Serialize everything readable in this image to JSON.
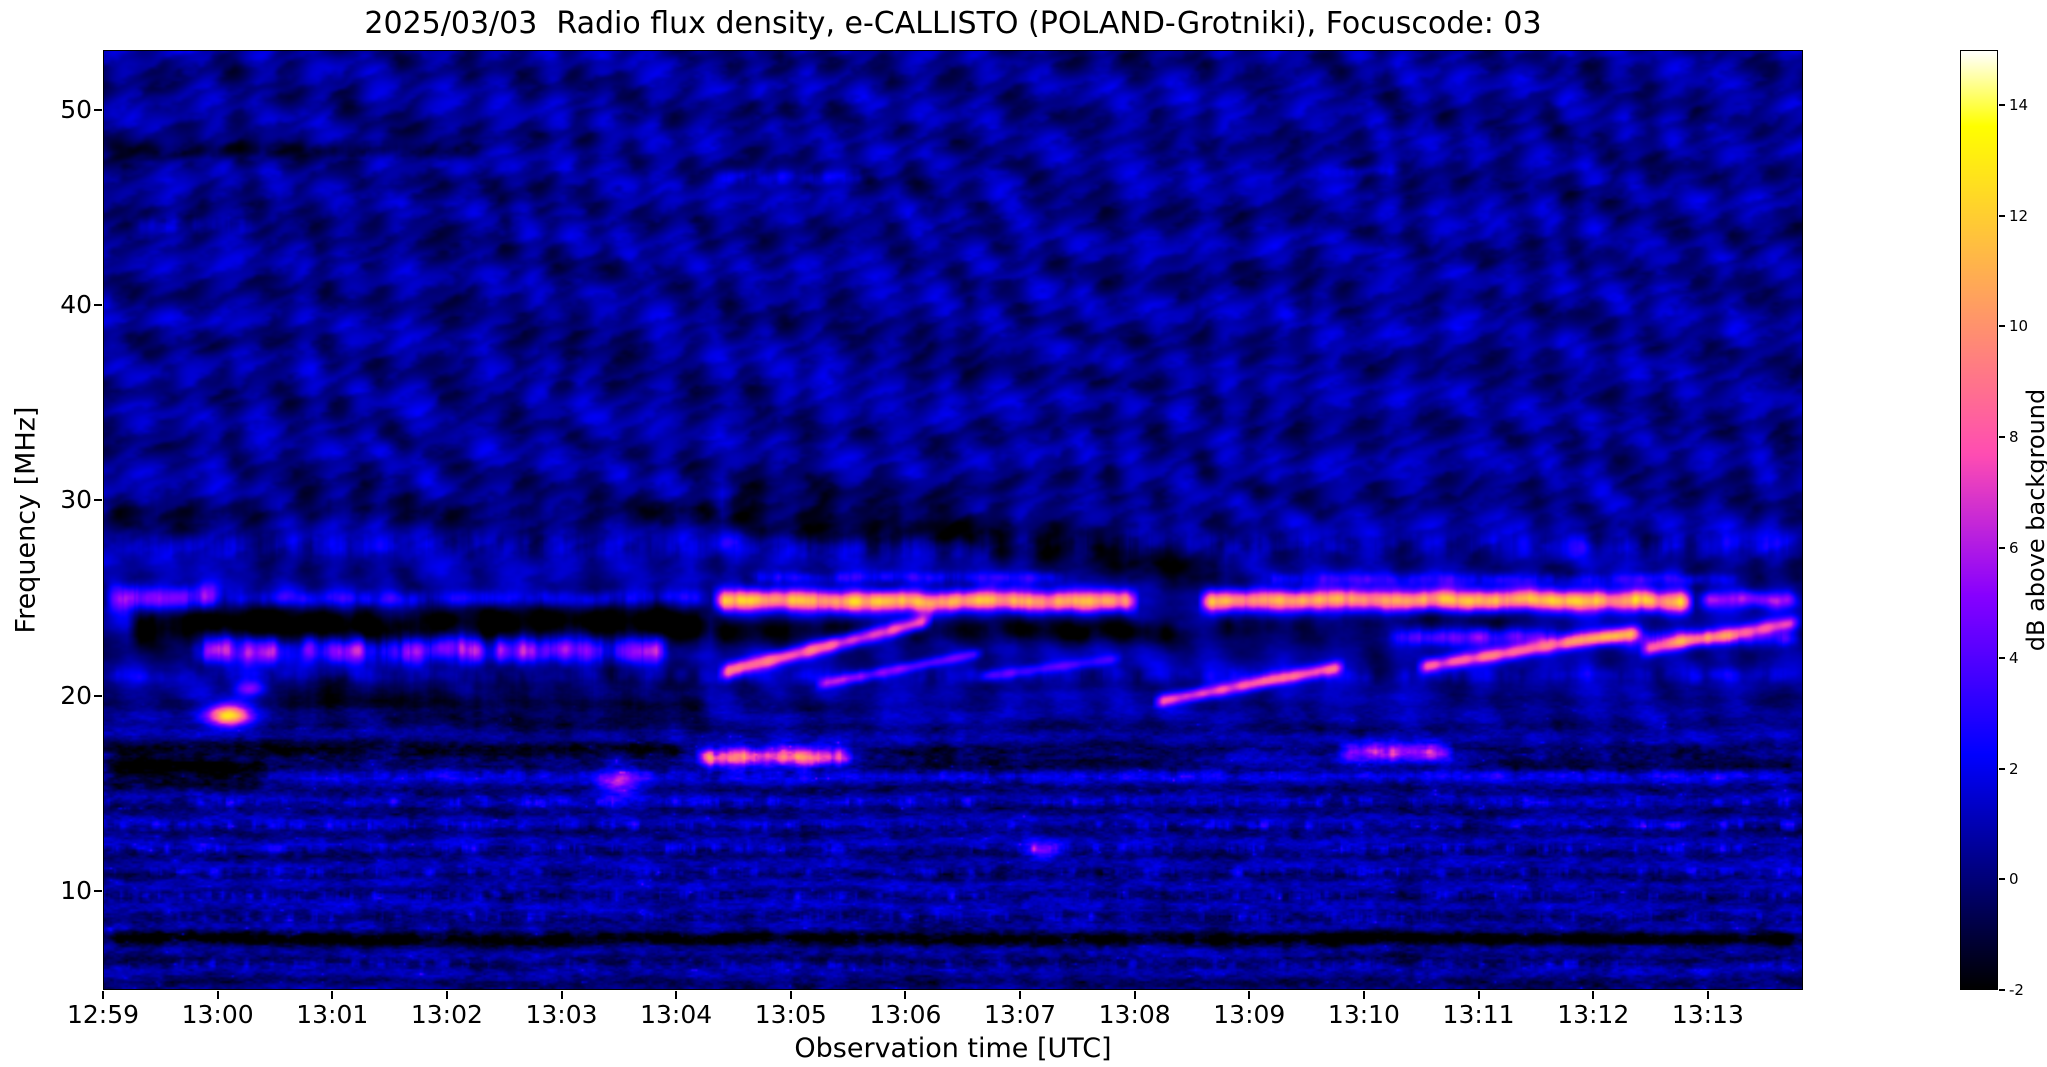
{
  "chart_data": {
    "type": "heatmap",
    "title": "2025/03/03  Radio flux density, e-CALLISTO (POLAND-Grotniki), Focuscode: 03",
    "xlabel": "Observation time [UTC]",
    "ylabel": "Frequency [MHz]",
    "x_ticks": [
      "12:59",
      "13:00",
      "13:01",
      "13:02",
      "13:03",
      "13:04",
      "13:05",
      "13:06",
      "13:07",
      "13:08",
      "13:09",
      "13:10",
      "13:11",
      "13:12",
      "13:13"
    ],
    "x_tick_minutes": [
      0,
      1,
      2,
      3,
      4,
      5,
      6,
      7,
      8,
      9,
      10,
      11,
      12,
      13,
      14
    ],
    "xlim": [
      0,
      14.83
    ],
    "y_ticks": [
      10,
      20,
      30,
      40,
      50
    ],
    "ylim": [
      4.9,
      53.1
    ],
    "grid": false,
    "colorbar": {
      "label": "dB above background",
      "ticks": [
        -2,
        0,
        2,
        4,
        6,
        8,
        10,
        12,
        14
      ],
      "vmin": -2,
      "vmax": 15,
      "colormap": "gnuplot2"
    },
    "features": [
      {
        "type": "band",
        "t0": 0.0,
        "t1": 1.05,
        "f": 25.0,
        "fw": 0.45,
        "amp": 7.5,
        "flicker": 0.45
      },
      {
        "type": "band",
        "t0": 1.05,
        "t1": 5.3,
        "f": 24.95,
        "fw": 0.3,
        "amp": 3.2,
        "flicker": 0.6
      },
      {
        "type": "band",
        "t0": 5.3,
        "t1": 9.05,
        "f": 24.85,
        "fw": 0.38,
        "amp": 12.5,
        "flicker": 0.3
      },
      {
        "type": "band",
        "t0": 9.55,
        "t1": 13.9,
        "f": 24.85,
        "fw": 0.38,
        "amp": 12.8,
        "flicker": 0.3
      },
      {
        "type": "band",
        "t0": 13.9,
        "t1": 14.83,
        "f": 24.9,
        "fw": 0.3,
        "amp": 6.0,
        "flicker": 0.5
      },
      {
        "type": "band",
        "t0": 5.6,
        "t1": 8.4,
        "f": 26.05,
        "fw": 0.22,
        "amp": 3.2,
        "flicker": 0.75
      },
      {
        "type": "band",
        "t0": 10.1,
        "t1": 14.3,
        "f": 25.95,
        "fw": 0.22,
        "amp": 3.0,
        "flicker": 0.75
      },
      {
        "type": "band",
        "t0": 0.2,
        "t1": 5.3,
        "f": 23.6,
        "fw": 0.75,
        "amp": -3.4,
        "flicker": 0.25
      },
      {
        "type": "band",
        "t0": 5.3,
        "t1": 9.4,
        "f": 23.3,
        "fw": 0.45,
        "amp": -2.4,
        "flicker": 0.3
      },
      {
        "type": "band",
        "t0": 9.7,
        "t1": 12.3,
        "f": 23.7,
        "fw": 0.4,
        "amp": -1.8,
        "flicker": 0.4
      },
      {
        "type": "band",
        "t0": 0.75,
        "t1": 4.95,
        "f": 22.35,
        "fw": 0.5,
        "amp": 7.0,
        "flicker": 0.7
      },
      {
        "type": "band",
        "t0": 11.2,
        "t1": 14.83,
        "f": 22.95,
        "fw": 0.3,
        "amp": 4.5,
        "flicker": 0.6
      },
      {
        "type": "drift",
        "t0": 5.35,
        "f0": 21.1,
        "t1": 7.25,
        "f1": 23.9,
        "w": 0.28,
        "amp": 9.5
      },
      {
        "type": "drift",
        "t0": 6.2,
        "f0": 20.5,
        "t1": 7.7,
        "f1": 22.2,
        "w": 0.2,
        "amp": 5.0
      },
      {
        "type": "drift",
        "t0": 7.6,
        "f0": 20.9,
        "t1": 8.9,
        "f1": 21.9,
        "w": 0.2,
        "amp": 3.5
      },
      {
        "type": "drift",
        "t0": 9.15,
        "f0": 19.6,
        "t1": 10.85,
        "f1": 21.5,
        "w": 0.24,
        "amp": 8.5
      },
      {
        "type": "drift",
        "t0": 11.45,
        "f0": 21.4,
        "t1": 13.45,
        "f1": 23.3,
        "w": 0.26,
        "amp": 9.0
      },
      {
        "type": "drift",
        "t0": 13.4,
        "f0": 22.3,
        "t1": 14.83,
        "f1": 23.8,
        "w": 0.26,
        "amp": 8.0
      },
      {
        "type": "drift",
        "t0": 5.4,
        "f0": 29.9,
        "t1": 9.8,
        "f1": 26.6,
        "w": 0.95,
        "amp": -2.3
      },
      {
        "type": "spot",
        "t": 1.08,
        "f": 18.95,
        "rt": 0.13,
        "rf": 0.4,
        "amp": 12.0
      },
      {
        "type": "spot",
        "t": 1.28,
        "f": 20.35,
        "rt": 0.1,
        "rf": 0.3,
        "amp": 5.0
      },
      {
        "type": "spot",
        "t": 4.5,
        "f": 15.4,
        "rt": 0.15,
        "rf": 0.5,
        "amp": 5.0
      },
      {
        "type": "spot",
        "t": 8.2,
        "f": 12.1,
        "rt": 0.12,
        "rf": 0.3,
        "amp": 5.0
      },
      {
        "type": "band",
        "t0": 5.15,
        "t1": 6.55,
        "f": 16.85,
        "fw": 0.35,
        "amp": 10.0,
        "flicker": 0.55
      },
      {
        "type": "band",
        "t0": 10.75,
        "t1": 11.8,
        "f": 17.05,
        "fw": 0.3,
        "amp": 8.0,
        "flicker": 0.55
      },
      {
        "type": "band",
        "t0": 0.0,
        "t1": 1.45,
        "f": 16.0,
        "fw": 0.45,
        "amp": -3.0,
        "flicker": 0.2
      },
      {
        "type": "band",
        "t0": 0.0,
        "t1": 5.1,
        "f": 17.05,
        "fw": 0.35,
        "amp": -2.3,
        "flicker": 0.35
      },
      {
        "type": "band",
        "t0": 6.6,
        "t1": 9.6,
        "f": 16.7,
        "fw": 0.4,
        "amp": -2.0,
        "flicker": 0.4
      },
      {
        "type": "band",
        "t0": 11.9,
        "t1": 14.83,
        "f": 16.6,
        "fw": 0.35,
        "amp": -1.8,
        "flicker": 0.4
      },
      {
        "type": "band",
        "t0": 0.0,
        "t1": 14.83,
        "f": 7.5,
        "fw": 0.3,
        "amp": -2.8,
        "flicker": 0.45
      },
      {
        "type": "band",
        "t0": 1.5,
        "t1": 5.3,
        "f": 19.8,
        "fw": 1.1,
        "amp": -1.9,
        "flicker": 0.5
      },
      {
        "type": "band",
        "t0": 0.0,
        "t1": 5.4,
        "f": 29.4,
        "fw": 0.55,
        "amp": -1.3,
        "flicker": 0.4
      },
      {
        "type": "band",
        "t0": 0.0,
        "t1": 14.83,
        "f": 27.7,
        "fw": 0.45,
        "amp": 1.7,
        "flicker": 0.9
      },
      {
        "type": "band",
        "t0": 0.0,
        "t1": 14.83,
        "f": 21.0,
        "fw": 0.3,
        "amp": 1.5,
        "flicker": 0.95
      },
      {
        "type": "band",
        "t0": 1.5,
        "t1": 14.83,
        "f": 15.9,
        "fw": 0.25,
        "amp": 2.0,
        "flicker": 0.9
      },
      {
        "type": "band",
        "t0": 5.3,
        "t1": 6.7,
        "f": 46.6,
        "fw": 0.25,
        "amp": 2.4,
        "flicker": 0.75
      },
      {
        "type": "band",
        "t0": 10.6,
        "t1": 11.35,
        "f": 46.9,
        "fw": 0.2,
        "amp": 2.1,
        "flicker": 0.75
      },
      {
        "type": "band",
        "t0": 0.2,
        "t1": 1.35,
        "f": 44.2,
        "fw": 0.3,
        "amp": 1.7,
        "flicker": 0.85
      },
      {
        "type": "band",
        "t0": 0.0,
        "t1": 3.3,
        "f": 48.0,
        "fw": 0.3,
        "amp": -1.6,
        "flicker": 0.4
      },
      {
        "type": "speckles",
        "f": 9.7,
        "amp": 3.0
      },
      {
        "type": "speckles",
        "f": 10.9,
        "amp": 3.4
      },
      {
        "type": "speckles",
        "f": 12.1,
        "amp": 3.6
      },
      {
        "type": "speckles",
        "f": 13.3,
        "amp": 3.4
      },
      {
        "type": "speckles",
        "f": 14.5,
        "amp": 3.2
      },
      {
        "type": "speckles",
        "f": 6.2,
        "amp": 2.2
      },
      {
        "type": "speckles",
        "f": 8.6,
        "amp": 2.4
      }
    ]
  }
}
